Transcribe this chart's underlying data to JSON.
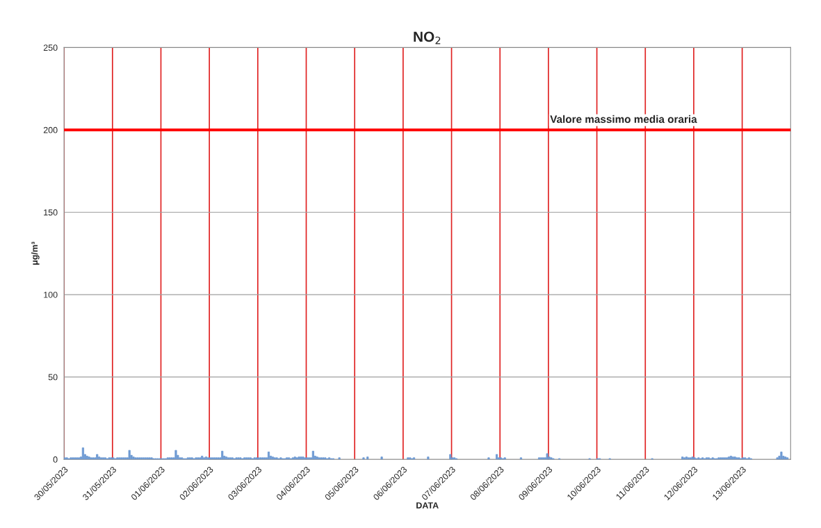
{
  "chart_data": {
    "type": "bar",
    "title": "NO$_{2}$",
    "xlabel": "DATA",
    "ylabel": "μg/m³",
    "series": [
      {
        "color": "#6f9ad3",
        "x": [
          "2023-05-30T00:00",
          "2023-05-30T01:00",
          "2023-05-30T02:00",
          "2023-05-30T03:00",
          "2023-05-30T04:00",
          "2023-05-30T05:00",
          "2023-05-30T06:00",
          "2023-05-30T07:00",
          "2023-05-30T08:00",
          "2023-05-30T09:00",
          "2023-05-30T10:00",
          "2023-05-30T11:00",
          "2023-05-30T12:00",
          "2023-05-30T13:00",
          "2023-05-30T14:00",
          "2023-05-30T15:00",
          "2023-05-30T16:00",
          "2023-05-30T17:00",
          "2023-05-30T18:00",
          "2023-05-30T19:00",
          "2023-05-30T20:00",
          "2023-05-30T21:00",
          "2023-05-30T22:00",
          "2023-05-30T23:00",
          "2023-05-31T00:00",
          "2023-05-31T01:00",
          "2023-05-31T02:00",
          "2023-05-31T03:00",
          "2023-05-31T04:00",
          "2023-05-31T05:00",
          "2023-05-31T06:00",
          "2023-05-31T07:00",
          "2023-05-31T08:00",
          "2023-05-31T09:00",
          "2023-05-31T10:00",
          "2023-05-31T11:00",
          "2023-05-31T12:00",
          "2023-05-31T13:00",
          "2023-05-31T14:00",
          "2023-05-31T15:00",
          "2023-05-31T16:00",
          "2023-05-31T17:00",
          "2023-05-31T18:00",
          "2023-05-31T19:00",
          "2023-05-31T20:00",
          "2023-05-31T21:00",
          "2023-05-31T22:00",
          "2023-05-31T23:00",
          "2023-06-01T00:00",
          "2023-06-01T01:00",
          "2023-06-01T02:00",
          "2023-06-01T03:00",
          "2023-06-01T04:00",
          "2023-06-01T05:00",
          "2023-06-01T06:00",
          "2023-06-01T07:00",
          "2023-06-01T08:00",
          "2023-06-01T09:00",
          "2023-06-01T10:00",
          "2023-06-01T11:00",
          "2023-06-01T12:00",
          "2023-06-01T13:00",
          "2023-06-01T14:00",
          "2023-06-01T15:00",
          "2023-06-01T16:00",
          "2023-06-01T17:00",
          "2023-06-01T18:00",
          "2023-06-01T19:00",
          "2023-06-01T20:00",
          "2023-06-01T21:00",
          "2023-06-01T22:00",
          "2023-06-01T23:00",
          "2023-06-02T00:00",
          "2023-06-02T01:00",
          "2023-06-02T02:00",
          "2023-06-02T03:00",
          "2023-06-02T04:00",
          "2023-06-02T05:00",
          "2023-06-02T06:00",
          "2023-06-02T07:00",
          "2023-06-02T08:00",
          "2023-06-02T09:00",
          "2023-06-02T10:00",
          "2023-06-02T11:00",
          "2023-06-02T12:00",
          "2023-06-02T13:00",
          "2023-06-02T14:00",
          "2023-06-02T15:00",
          "2023-06-02T16:00",
          "2023-06-02T17:00",
          "2023-06-02T18:00",
          "2023-06-02T19:00",
          "2023-06-02T20:00",
          "2023-06-02T21:00",
          "2023-06-02T22:00",
          "2023-06-02T23:00",
          "2023-06-03T00:00",
          "2023-06-03T01:00",
          "2023-06-03T02:00",
          "2023-06-03T03:00",
          "2023-06-03T04:00",
          "2023-06-03T05:00",
          "2023-06-03T06:00",
          "2023-06-03T07:00",
          "2023-06-03T08:00",
          "2023-06-03T09:00",
          "2023-06-03T10:00",
          "2023-06-03T11:00",
          "2023-06-03T12:00",
          "2023-06-03T13:00",
          "2023-06-03T14:00",
          "2023-06-03T15:00",
          "2023-06-03T16:00",
          "2023-06-03T17:00",
          "2023-06-03T18:00",
          "2023-06-03T19:00",
          "2023-06-03T20:00",
          "2023-06-03T21:00",
          "2023-06-03T22:00",
          "2023-06-03T23:00",
          "2023-06-04T00:00",
          "2023-06-04T01:00",
          "2023-06-04T02:00",
          "2023-06-04T03:00",
          "2023-06-04T04:00",
          "2023-06-04T05:00",
          "2023-06-04T06:00",
          "2023-06-04T07:00",
          "2023-06-04T08:00",
          "2023-06-04T09:00",
          "2023-06-04T10:00",
          "2023-06-04T11:00",
          "2023-06-04T12:00",
          "2023-06-04T13:00",
          "2023-06-04T14:00",
          "2023-06-04T15:00",
          "2023-06-04T16:00",
          "2023-06-04T17:00",
          "2023-06-04T18:00",
          "2023-06-04T19:00",
          "2023-06-04T20:00",
          "2023-06-04T21:00",
          "2023-06-04T22:00",
          "2023-06-04T23:00",
          "2023-06-05T00:00",
          "2023-06-05T01:00",
          "2023-06-05T02:00",
          "2023-06-05T03:00",
          "2023-06-05T04:00",
          "2023-06-05T05:00",
          "2023-06-05T06:00",
          "2023-06-05T07:00",
          "2023-06-05T08:00",
          "2023-06-05T09:00",
          "2023-06-05T10:00",
          "2023-06-05T11:00",
          "2023-06-05T12:00",
          "2023-06-05T13:00",
          "2023-06-05T14:00",
          "2023-06-05T15:00",
          "2023-06-05T16:00",
          "2023-06-05T17:00",
          "2023-06-05T18:00",
          "2023-06-05T19:00",
          "2023-06-05T20:00",
          "2023-06-05T21:00",
          "2023-06-05T22:00",
          "2023-06-05T23:00",
          "2023-06-06T00:00",
          "2023-06-06T01:00",
          "2023-06-06T02:00",
          "2023-06-06T03:00",
          "2023-06-06T04:00",
          "2023-06-06T05:00",
          "2023-06-06T06:00",
          "2023-06-06T07:00",
          "2023-06-06T08:00",
          "2023-06-06T09:00",
          "2023-06-06T10:00",
          "2023-06-06T11:00",
          "2023-06-06T12:00",
          "2023-06-06T13:00",
          "2023-06-06T14:00",
          "2023-06-06T15:00",
          "2023-06-06T16:00",
          "2023-06-06T17:00",
          "2023-06-06T18:00",
          "2023-06-06T19:00",
          "2023-06-06T20:00",
          "2023-06-06T21:00",
          "2023-06-06T22:00",
          "2023-06-06T23:00",
          "2023-06-07T00:00",
          "2023-06-07T01:00",
          "2023-06-07T02:00",
          "2023-06-07T03:00",
          "2023-06-07T04:00",
          "2023-06-07T05:00",
          "2023-06-07T06:00",
          "2023-06-07T07:00",
          "2023-06-07T08:00",
          "2023-06-07T09:00",
          "2023-06-07T10:00",
          "2023-06-07T11:00",
          "2023-06-07T12:00",
          "2023-06-07T13:00",
          "2023-06-07T14:00",
          "2023-06-07T15:00",
          "2023-06-07T16:00",
          "2023-06-07T17:00",
          "2023-06-07T18:00",
          "2023-06-07T19:00",
          "2023-06-07T20:00",
          "2023-06-07T21:00",
          "2023-06-07T22:00",
          "2023-06-07T23:00",
          "2023-06-08T00:00",
          "2023-06-08T01:00",
          "2023-06-08T02:00",
          "2023-06-08T03:00",
          "2023-06-08T04:00",
          "2023-06-08T05:00",
          "2023-06-08T06:00",
          "2023-06-08T07:00",
          "2023-06-08T08:00",
          "2023-06-08T09:00",
          "2023-06-08T10:00",
          "2023-06-08T11:00",
          "2023-06-08T12:00",
          "2023-06-08T13:00",
          "2023-06-08T14:00",
          "2023-06-08T15:00",
          "2023-06-08T16:00",
          "2023-06-08T17:00",
          "2023-06-08T18:00",
          "2023-06-08T19:00",
          "2023-06-08T20:00",
          "2023-06-08T21:00",
          "2023-06-08T22:00",
          "2023-06-08T23:00",
          "2023-06-09T00:00",
          "2023-06-09T01:00",
          "2023-06-09T02:00",
          "2023-06-09T03:00",
          "2023-06-09T04:00",
          "2023-06-09T05:00",
          "2023-06-09T06:00",
          "2023-06-09T07:00",
          "2023-06-09T08:00",
          "2023-06-09T09:00",
          "2023-06-09T10:00",
          "2023-06-09T11:00",
          "2023-06-09T12:00",
          "2023-06-09T13:00",
          "2023-06-09T14:00",
          "2023-06-09T15:00",
          "2023-06-09T16:00",
          "2023-06-09T17:00",
          "2023-06-09T18:00",
          "2023-06-09T19:00",
          "2023-06-09T20:00",
          "2023-06-09T21:00",
          "2023-06-09T22:00",
          "2023-06-09T23:00",
          "2023-06-10T00:00",
          "2023-06-10T01:00",
          "2023-06-10T02:00",
          "2023-06-10T03:00",
          "2023-06-10T04:00",
          "2023-06-10T05:00",
          "2023-06-10T06:00",
          "2023-06-10T07:00",
          "2023-06-10T08:00",
          "2023-06-10T09:00",
          "2023-06-10T10:00",
          "2023-06-10T11:00",
          "2023-06-10T12:00",
          "2023-06-10T13:00",
          "2023-06-10T14:00",
          "2023-06-10T15:00",
          "2023-06-10T16:00",
          "2023-06-10T17:00",
          "2023-06-10T18:00",
          "2023-06-10T19:00",
          "2023-06-10T20:00",
          "2023-06-10T21:00",
          "2023-06-10T22:00",
          "2023-06-10T23:00",
          "2023-06-11T00:00",
          "2023-06-11T01:00",
          "2023-06-11T02:00",
          "2023-06-11T03:00",
          "2023-06-11T04:00",
          "2023-06-11T05:00",
          "2023-06-11T06:00",
          "2023-06-11T07:00",
          "2023-06-11T08:00",
          "2023-06-11T09:00",
          "2023-06-11T10:00",
          "2023-06-11T11:00",
          "2023-06-11T12:00",
          "2023-06-11T13:00",
          "2023-06-11T14:00",
          "2023-06-11T15:00",
          "2023-06-11T16:00",
          "2023-06-11T17:00",
          "2023-06-11T18:00",
          "2023-06-11T19:00",
          "2023-06-11T20:00",
          "2023-06-11T21:00",
          "2023-06-11T22:00",
          "2023-06-11T23:00",
          "2023-06-12T00:00",
          "2023-06-12T01:00",
          "2023-06-12T02:00",
          "2023-06-12T03:00",
          "2023-06-12T04:00",
          "2023-06-12T05:00",
          "2023-06-12T06:00",
          "2023-06-12T07:00",
          "2023-06-12T08:00",
          "2023-06-12T09:00",
          "2023-06-12T10:00",
          "2023-06-12T11:00",
          "2023-06-12T12:00",
          "2023-06-12T13:00",
          "2023-06-12T14:00",
          "2023-06-12T15:00",
          "2023-06-12T16:00",
          "2023-06-12T17:00",
          "2023-06-12T18:00",
          "2023-06-12T19:00",
          "2023-06-12T20:00",
          "2023-06-12T21:00",
          "2023-06-12T22:00",
          "2023-06-12T23:00",
          "2023-06-13T00:00",
          "2023-06-13T01:00",
          "2023-06-13T02:00",
          "2023-06-13T03:00",
          "2023-06-13T04:00",
          "2023-06-13T05:00",
          "2023-06-13T06:00",
          "2023-06-13T07:00",
          "2023-06-13T08:00",
          "2023-06-13T09:00",
          "2023-06-13T10:00",
          "2023-06-13T11:00",
          "2023-06-13T12:00",
          "2023-06-13T13:00",
          "2023-06-13T14:00",
          "2023-06-13T15:00",
          "2023-06-13T16:00",
          "2023-06-13T17:00",
          "2023-06-13T18:00",
          "2023-06-13T19:00",
          "2023-06-13T20:00",
          "2023-06-13T21:00",
          "2023-06-13T22:00"
        ],
        "values": [
          1,
          1,
          0.5,
          1,
          1,
          1,
          1,
          1,
          1.5,
          7,
          3,
          2,
          1.5,
          1,
          1,
          1,
          3,
          1.5,
          1,
          1,
          1,
          0.5,
          1,
          1,
          1,
          0.5,
          1,
          1,
          1,
          1,
          1,
          1,
          5.5,
          2.5,
          1.5,
          1,
          1,
          1,
          1,
          1,
          1,
          1,
          1,
          1,
          0.5,
          0.5,
          0.5,
          0.5,
          0.5,
          0.5,
          0.5,
          1,
          1,
          1,
          1,
          5.5,
          2.5,
          1,
          1,
          0.5,
          0.5,
          1,
          1,
          1,
          0.5,
          1,
          1,
          1,
          2,
          1,
          1.5,
          1,
          1,
          1,
          1,
          1,
          1,
          1,
          5,
          2,
          1.5,
          1,
          1,
          1,
          0.5,
          1,
          1,
          1,
          0.5,
          1,
          1,
          1,
          1,
          0.5,
          1,
          1,
          1,
          1,
          1,
          1,
          1,
          4.5,
          2,
          1.5,
          1,
          1,
          0.5,
          1,
          0.5,
          0.5,
          1,
          1,
          0.5,
          1,
          1.5,
          1,
          1.5,
          1.5,
          1.5,
          1,
          1,
          1,
          1,
          5,
          2,
          1.5,
          1,
          1,
          1,
          1,
          0.5,
          1,
          0.5,
          0.5,
          null,
          null,
          1,
          null,
          null,
          null,
          null,
          null,
          null,
          null,
          null,
          null,
          null,
          null,
          1,
          null,
          1.5,
          null,
          null,
          null,
          null,
          null,
          null,
          1.5,
          null,
          null,
          null,
          null,
          null,
          null,
          null,
          null,
          null,
          null,
          null,
          null,
          1,
          1,
          0.5,
          1,
          null,
          null,
          null,
          null,
          null,
          null,
          1.5,
          null,
          null,
          null,
          null,
          null,
          null,
          null,
          null,
          null,
          null,
          3,
          1,
          1,
          0.5,
          null,
          null,
          null,
          null,
          null,
          null,
          null,
          null,
          null,
          null,
          null,
          null,
          null,
          null,
          null,
          1,
          null,
          null,
          null,
          3,
          1,
          1,
          0.5,
          1,
          null,
          null,
          null,
          null,
          null,
          null,
          null,
          1,
          null,
          null,
          null,
          null,
          null,
          null,
          null,
          null,
          1,
          1,
          1,
          1,
          3.5,
          1.5,
          1,
          0.5,
          null,
          null,
          0.5,
          null,
          null,
          null,
          null,
          null,
          null,
          null,
          null,
          null,
          null,
          null,
          null,
          null,
          null,
          0.5,
          null,
          null,
          null,
          0.5,
          0.5,
          null,
          null,
          null,
          null,
          0.5,
          null,
          null,
          null,
          null,
          null,
          null,
          null,
          null,
          null,
          null,
          null,
          null,
          null,
          null,
          null,
          null,
          null,
          null,
          null,
          null,
          0.5,
          null,
          null,
          null,
          null,
          null,
          null,
          null,
          null,
          null,
          null,
          null,
          null,
          null,
          null,
          1.5,
          1,
          1.5,
          1,
          1,
          1.5,
          1,
          0.5,
          1,
          0.5,
          1,
          0.5,
          1,
          1,
          0.5,
          1,
          0.5,
          0.5,
          1,
          1,
          1,
          1,
          1,
          1.5,
          2,
          1.5,
          1.5,
          1,
          1,
          0.5,
          1,
          1,
          0.5,
          1,
          0.5,
          null,
          null,
          null,
          null,
          null,
          null,
          null,
          null,
          null,
          null,
          null,
          null,
          1,
          2,
          4.5,
          2,
          1.5,
          1
        ]
      }
    ],
    "xlim": [
      "2023-05-30T00:00",
      "2023-06-14T00:00"
    ],
    "xticks": [
      {
        "value": "2023-05-30",
        "label": "30/05/2023"
      },
      {
        "value": "2023-05-31",
        "label": "31/05/2023"
      },
      {
        "value": "2023-06-01",
        "label": "01/06/2023"
      },
      {
        "value": "2023-06-02",
        "label": "02/06/2023"
      },
      {
        "value": "2023-06-03",
        "label": "03/06/2023"
      },
      {
        "value": "2023-06-04",
        "label": "04/06/2023"
      },
      {
        "value": "2023-06-05",
        "label": "05/06/2023"
      },
      {
        "value": "2023-06-06",
        "label": "06/06/2023"
      },
      {
        "value": "2023-06-07",
        "label": "07/06/2023"
      },
      {
        "value": "2023-06-08",
        "label": "08/06/2023"
      },
      {
        "value": "2023-06-09",
        "label": "09/06/2023"
      },
      {
        "value": "2023-06-10",
        "label": "10/06/2023"
      },
      {
        "value": "2023-06-11",
        "label": "11/06/2023"
      },
      {
        "value": "2023-06-12",
        "label": "12/06/2023"
      },
      {
        "value": "2023-06-13",
        "label": "13/06/2023"
      }
    ],
    "ylim": [
      0,
      250
    ],
    "yticks": [
      0,
      50,
      100,
      150,
      200,
      250
    ],
    "grid": true,
    "ref_lines": [
      {
        "axis": "y",
        "value": 200,
        "label": "Valore massimo media oraria",
        "color": "#ff0000"
      }
    ]
  }
}
